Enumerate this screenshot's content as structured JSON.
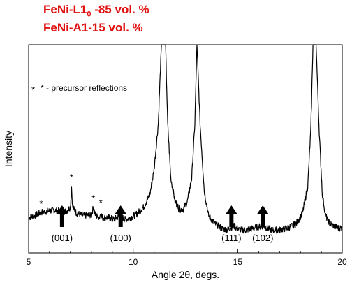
{
  "header": {
    "line1_main": "FeNi-L1",
    "line1_sub": "0",
    "line1_rest": " -85 vol. %",
    "line2": "FeNi-A1-15 vol. %",
    "color": "#e01010"
  },
  "chart_data": {
    "type": "line",
    "title": "",
    "xlabel": "Angle 2θ, degs.",
    "ylabel": "Intensity",
    "xlim": [
      5,
      20
    ],
    "ylim": [
      0,
      100
    ],
    "xticks": [
      5,
      10,
      15,
      20
    ],
    "y_tick_labels": false,
    "grid": false,
    "line_color": "#000000",
    "annotation": "* - precursor reflections",
    "series": [
      {
        "x": [
          5.0,
          5.3,
          5.6,
          5.9,
          6.2,
          6.5,
          6.8,
          7.0,
          7.05,
          7.1,
          7.3,
          7.6,
          8.0,
          8.1,
          8.2,
          8.4,
          8.45,
          8.5,
          8.8,
          9.1,
          9.35,
          9.6,
          9.9,
          10.2,
          10.5,
          10.8,
          11.0,
          11.2,
          11.35,
          11.45,
          11.55,
          11.65,
          11.8,
          12.0,
          12.2,
          12.4,
          12.6,
          12.8,
          12.95,
          13.05,
          13.2,
          13.4,
          13.6,
          13.9,
          14.2,
          14.5,
          14.8,
          15.1,
          15.4,
          15.8,
          16.2,
          16.6,
          17.0,
          17.4,
          17.8,
          18.1,
          18.35,
          18.5,
          18.6,
          18.75,
          18.9,
          19.05,
          19.2,
          19.4,
          19.6,
          19.8,
          20.0
        ],
        "y": [
          17,
          18,
          19.5,
          20,
          20.5,
          20,
          20,
          22,
          32,
          22,
          19,
          18,
          18,
          22,
          18,
          17,
          20,
          17,
          17,
          16,
          18,
          16,
          17,
          19,
          22,
          28,
          40,
          62,
          100,
          100,
          100,
          62,
          36,
          25,
          21,
          21,
          25,
          36,
          62,
          100,
          62,
          30,
          18,
          14,
          12,
          11,
          13,
          11,
          11,
          12,
          13,
          11,
          11,
          12,
          14,
          19,
          32,
          60,
          100,
          100,
          58,
          28,
          18,
          14,
          13,
          12,
          12
        ]
      }
    ],
    "stars": [
      5.6,
      7.05,
      8.1,
      8.45
    ],
    "arrows": [
      {
        "x": 6.6,
        "label": "(001)"
      },
      {
        "x": 9.4,
        "label": "(100)"
      },
      {
        "x": 14.7,
        "label": "(111)"
      },
      {
        "x": 16.2,
        "label": "(102)"
      }
    ]
  }
}
